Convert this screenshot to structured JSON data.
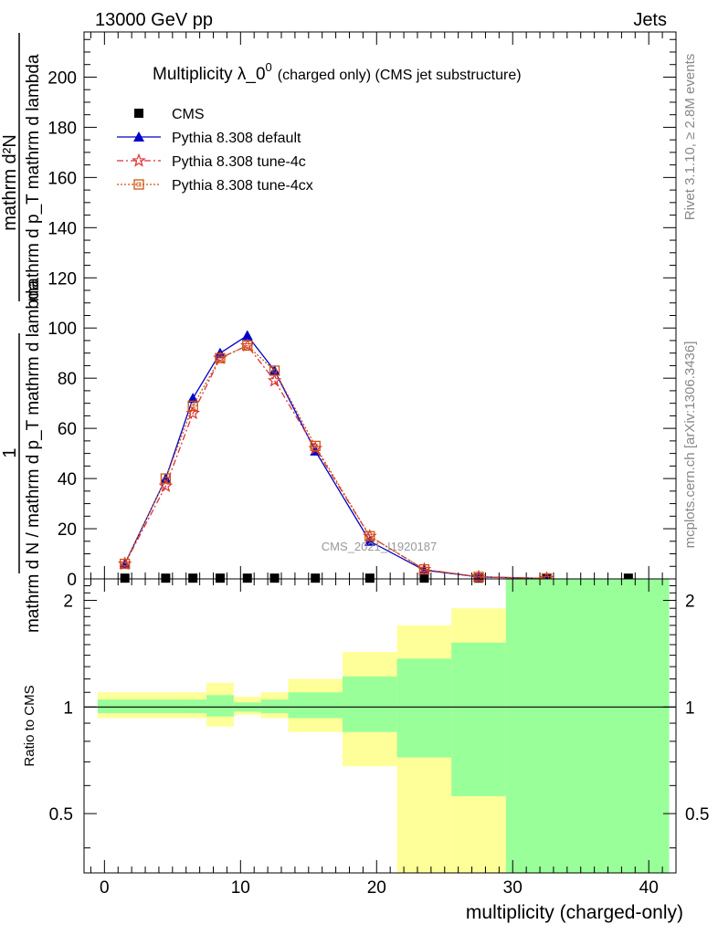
{
  "header": {
    "left": "13000 GeV pp",
    "right": "Jets"
  },
  "side_labels": {
    "rivet": "Rivet 3.1.10, ≥ 2.8M events",
    "mcplots": "mcplots.cern.ch [arXiv:1306.3436]"
  },
  "chart_data": [
    {
      "type": "line",
      "title_main": "Multiplicity λ_0",
      "title_sup": "0",
      "title_suffix": "(charged only) (CMS jet substructure)",
      "watermark": "CMS_2021_I1920187",
      "ylabel": {
        "numerator": "1",
        "denominator": "mathrm d N / mathrm d p_T mathrm d lambda",
        "right_numerator": "mathrm d²N",
        "right_denominator": "mathrm d p_T mathrm d lambda"
      },
      "xlim": [
        -1.5,
        42
      ],
      "ylim": [
        0,
        218
      ],
      "y_ticks": [
        0,
        20,
        40,
        60,
        80,
        100,
        120,
        140,
        160,
        180,
        200
      ],
      "grid": false,
      "legend_position": "top-left",
      "series": [
        {
          "name": "CMS",
          "color": "#000000",
          "marker": "square",
          "x": [
            1.5,
            4.5,
            6.5,
            8.5,
            10.5,
            12.5,
            15.5,
            19.5,
            23.5,
            27.5,
            32.5,
            38.5
          ],
          "values": [
            0.3,
            0.3,
            0.3,
            0.3,
            0.3,
            0.3,
            0.3,
            0.3,
            0.3,
            0.3,
            0.3,
            0.3
          ]
        },
        {
          "name": "Pythia 8.308 default",
          "color": "#0000cc",
          "marker": "triangle",
          "dash": "",
          "x": [
            1.5,
            4.5,
            6.5,
            8.5,
            10.5,
            12.5,
            15.5,
            19.5,
            23.5,
            27.5,
            32.5
          ],
          "values": [
            6,
            40,
            72,
            90,
            97,
            83,
            51,
            15,
            3.5,
            0.8,
            0.2
          ]
        },
        {
          "name": "Pythia 8.308 tune-4c",
          "color": "#dd3333",
          "marker": "star",
          "dash": "7,3,2,3",
          "x": [
            1.5,
            4.5,
            6.5,
            8.5,
            10.5,
            12.5,
            15.5,
            19.5,
            23.5,
            27.5,
            32.5
          ],
          "values": [
            6,
            37,
            66,
            88,
            93,
            79,
            52,
            17,
            3.8,
            0.8,
            0.2
          ]
        },
        {
          "name": "Pythia 8.308 tune-4cx",
          "color": "#cc5511",
          "marker": "open-square",
          "dash": "2,2",
          "x": [
            1.5,
            4.5,
            6.5,
            8.5,
            10.5,
            12.5,
            15.5,
            19.5,
            23.5,
            27.5,
            32.5
          ],
          "values": [
            6,
            40,
            69,
            88,
            93,
            83,
            53,
            17,
            3.8,
            0.8,
            0.2
          ]
        }
      ]
    },
    {
      "type": "area",
      "ylabel": "Ratio to CMS",
      "xlabel": "multiplicity (charged-only)",
      "xlim": [
        -1.5,
        42
      ],
      "ylim": [
        0.34,
        2.3
      ],
      "y_scale": "log",
      "x_ticks": [
        0,
        10,
        20,
        30,
        40
      ],
      "y_ticks": [
        0.5,
        1,
        2
      ],
      "reference_line": 1,
      "bands": [
        {
          "name": "total uncertainty",
          "color": "#ffff99",
          "bins": [
            [
              -0.5,
              3.5,
              0.93,
              1.1
            ],
            [
              3.5,
              7.5,
              0.93,
              1.1
            ],
            [
              5.5,
              7.5,
              0.95,
              1.08
            ],
            [
              7.5,
              9.5,
              0.88,
              1.17
            ],
            [
              9.5,
              11.5,
              0.95,
              1.07
            ],
            [
              11.5,
              13.5,
              0.93,
              1.1
            ],
            [
              13.5,
              17.5,
              0.85,
              1.2
            ],
            [
              17.5,
              21.5,
              0.68,
              1.43
            ],
            [
              21.5,
              25.5,
              0.3,
              1.7
            ],
            [
              25.5,
              29.5,
              0.3,
              1.9
            ],
            [
              29.5,
              41.5,
              0.3,
              2.5
            ]
          ]
        },
        {
          "name": "statistical uncertainty",
          "color": "#99ff99",
          "bins": [
            [
              -0.5,
              3.5,
              0.96,
              1.05
            ],
            [
              3.5,
              7.5,
              0.96,
              1.05
            ],
            [
              5.5,
              7.5,
              0.97,
              1.04
            ],
            [
              7.5,
              9.5,
              0.94,
              1.08
            ],
            [
              9.5,
              11.5,
              0.97,
              1.03
            ],
            [
              11.5,
              13.5,
              0.96,
              1.05
            ],
            [
              13.5,
              17.5,
              0.93,
              1.1
            ],
            [
              17.5,
              21.5,
              0.85,
              1.22
            ],
            [
              21.5,
              25.5,
              0.72,
              1.37
            ],
            [
              25.5,
              29.5,
              0.56,
              1.52
            ],
            [
              29.5,
              41.5,
              0.3,
              2.5
            ]
          ]
        }
      ]
    }
  ]
}
